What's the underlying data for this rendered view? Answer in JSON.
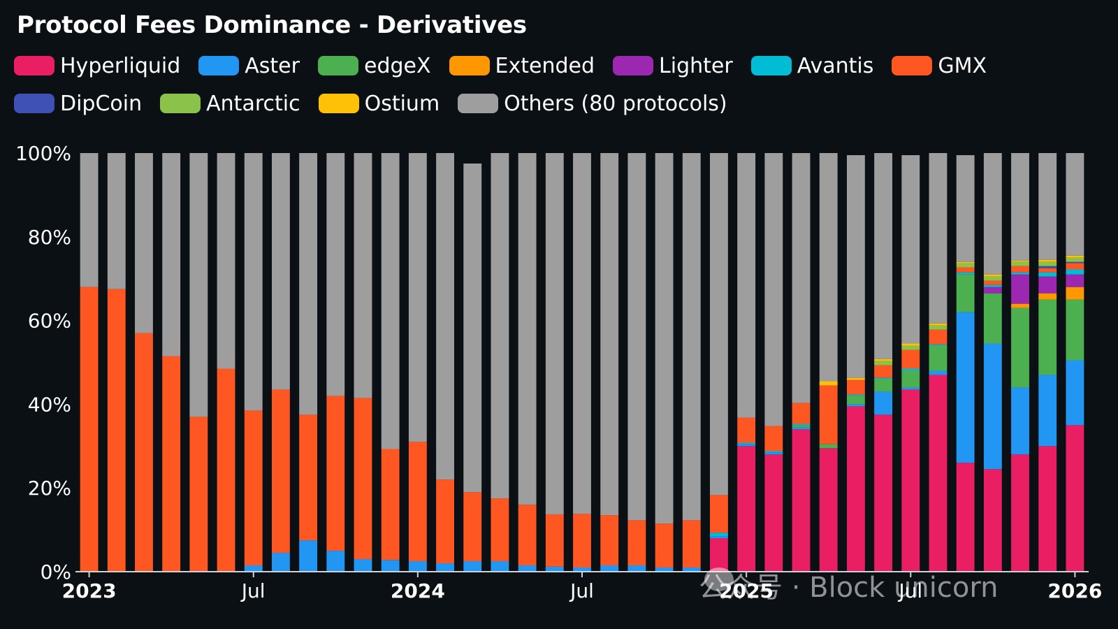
{
  "title": "Protocol Fees Dominance - Derivatives",
  "watermark": "公众号 · Block unicorn",
  "colors": {
    "Hyperliquid": "#e91e63",
    "Aster": "#2196f3",
    "edgeX": "#4caf50",
    "Extended": "#ff9800",
    "Lighter": "#9c27b0",
    "Avantis": "#00bcd4",
    "GMX": "#ff5722",
    "DipCoin": "#3f51b5",
    "Antarctic": "#8bc34a",
    "Ostium": "#ffc107",
    "Others (80 protocols)": "#9e9e9e"
  },
  "legend": [
    "Hyperliquid",
    "Aster",
    "edgeX",
    "Extended",
    "Lighter",
    "Avantis",
    "GMX",
    "DipCoin",
    "Antarctic",
    "Ostium",
    "Others (80 protocols)"
  ],
  "chart_data": {
    "type": "bar",
    "stacked": true,
    "title": "Protocol Fees Dominance - Derivatives",
    "ylim": [
      0,
      100
    ],
    "yticks": [
      "0%",
      "20%",
      "40%",
      "60%",
      "80%",
      "100%"
    ],
    "xtick_labels": [
      {
        "label": "2023",
        "index": 0,
        "bold": true
      },
      {
        "label": "Jul",
        "index": 6,
        "bold": false
      },
      {
        "label": "2024",
        "index": 12,
        "bold": true
      },
      {
        "label": "Jul",
        "index": 18,
        "bold": false
      },
      {
        "label": "2025",
        "index": 24,
        "bold": true
      },
      {
        "label": "Jul",
        "index": 30,
        "bold": false
      },
      {
        "label": "2026",
        "index": 36,
        "bold": true
      }
    ],
    "categories": [
      "2023-01",
      "2023-02",
      "2023-03",
      "2023-04",
      "2023-05",
      "2023-06",
      "2023-07",
      "2023-08",
      "2023-09",
      "2023-10",
      "2023-11",
      "2023-12",
      "2024-01",
      "2024-02",
      "2024-03",
      "2024-04",
      "2024-05",
      "2024-06",
      "2024-07",
      "2024-08",
      "2024-09",
      "2024-10",
      "2024-11",
      "2024-12",
      "2025-01",
      "2025-02",
      "2025-03",
      "2025-04",
      "2025-05",
      "2025-06",
      "2025-07",
      "2025-08",
      "2025-09",
      "2025-10",
      "2025-11",
      "2025-12",
      "2026-01"
    ],
    "series": [
      {
        "name": "Hyperliquid",
        "values": [
          0,
          0,
          0,
          0,
          0,
          0,
          0,
          0,
          0,
          0,
          0,
          0,
          0,
          0,
          0,
          0,
          0,
          0,
          0,
          0,
          0,
          0,
          0,
          8,
          30,
          28,
          34,
          29.5,
          39.5,
          37.5,
          43.5,
          47,
          26,
          24.5,
          28,
          30,
          35
        ]
      },
      {
        "name": "Aster",
        "values": [
          0,
          0,
          0,
          0,
          0,
          0,
          1.5,
          4.5,
          7.5,
          5,
          3,
          2.8,
          2.5,
          2,
          2.5,
          2.5,
          1.5,
          1.2,
          1,
          1.5,
          1.5,
          1,
          1,
          0.5,
          0.5,
          0.5,
          0.5,
          0,
          0.5,
          5.5,
          0.5,
          1,
          36,
          30,
          16,
          17,
          15.5
        ]
      },
      {
        "name": "edgeX",
        "values": [
          0,
          0,
          0,
          0,
          0,
          0,
          0,
          0,
          0,
          0,
          0,
          0,
          0,
          0,
          0,
          0,
          0,
          0,
          0,
          0,
          0,
          0,
          0,
          0,
          0,
          0,
          0.5,
          1,
          2,
          3,
          4,
          6,
          9,
          12,
          19,
          18,
          14.5
        ]
      },
      {
        "name": "Extended",
        "values": [
          0,
          0,
          0,
          0,
          0,
          0,
          0,
          0,
          0,
          0,
          0,
          0,
          0,
          0,
          0,
          0,
          0,
          0,
          0,
          0,
          0,
          0,
          0,
          0,
          0,
          0,
          0,
          0,
          0,
          0,
          0,
          0,
          0,
          0,
          1,
          1.5,
          3
        ]
      },
      {
        "name": "Lighter",
        "values": [
          0,
          0,
          0,
          0,
          0,
          0,
          0,
          0,
          0,
          0,
          0,
          0,
          0,
          0,
          0,
          0,
          0,
          0,
          0,
          0,
          0,
          0,
          0,
          0,
          0,
          0,
          0,
          0,
          0,
          0,
          0,
          0,
          0,
          1.5,
          7,
          4,
          3
        ]
      },
      {
        "name": "Avantis",
        "values": [
          0,
          0,
          0,
          0,
          0,
          0,
          0,
          0,
          0,
          0,
          0,
          0,
          0,
          0,
          0,
          0,
          0,
          0,
          0,
          0,
          0,
          0,
          0,
          0.8,
          0.3,
          0.3,
          0.3,
          0,
          0.3,
          0.3,
          0.5,
          0.3,
          0.5,
          0.5,
          0.5,
          1,
          1.2
        ]
      },
      {
        "name": "GMX",
        "values": [
          68,
          67.5,
          57,
          51.5,
          37,
          48.5,
          37,
          39,
          30,
          37,
          38.5,
          26.5,
          28.5,
          20,
          16.5,
          15,
          14.5,
          12.5,
          12.8,
          12,
          10.8,
          10.5,
          11.3,
          9,
          6,
          6,
          5,
          14,
          3.5,
          3,
          4.5,
          3.5,
          1.2,
          1,
          1.5,
          1,
          1.5
        ]
      },
      {
        "name": "DipCoin",
        "values": [
          0,
          0,
          0,
          0,
          0,
          0,
          0,
          0,
          0,
          0,
          0,
          0,
          0,
          0,
          0,
          0,
          0,
          0,
          0,
          0,
          0,
          0,
          0,
          0,
          0,
          0,
          0,
          0,
          0,
          0,
          0,
          0,
          0,
          0,
          0,
          0.5,
          0.3
        ]
      },
      {
        "name": "Antarctic",
        "values": [
          0,
          0,
          0,
          0,
          0,
          0,
          0,
          0,
          0,
          0,
          0,
          0,
          0,
          0,
          0,
          0,
          0,
          0,
          0,
          0,
          0,
          0,
          0,
          0,
          0,
          0,
          0,
          0,
          0,
          1,
          1,
          1,
          1,
          1,
          1,
          1,
          1
        ]
      },
      {
        "name": "Ostium",
        "values": [
          0,
          0,
          0,
          0,
          0,
          0,
          0,
          0,
          0,
          0,
          0,
          0,
          0,
          0,
          0,
          0,
          0,
          0,
          0,
          0,
          0,
          0,
          0,
          0,
          0,
          0,
          0,
          1,
          0.5,
          0.5,
          0.5,
          0.5,
          0.3,
          0.5,
          0.3,
          0.5,
          0.5
        ]
      },
      {
        "name": "Others (80 protocols)",
        "values": [
          32,
          32.5,
          43,
          48.5,
          63,
          51.5,
          61.5,
          56.5,
          62.5,
          58,
          58.5,
          70.7,
          69,
          78,
          78.5,
          82.5,
          84,
          86.3,
          86.2,
          86.5,
          87.7,
          88.5,
          87.7,
          81.7,
          63.2,
          65.2,
          59.7,
          54.5,
          53.2,
          49.2,
          45,
          40.7,
          25.5,
          29,
          25.7,
          25.5,
          24.5
        ]
      }
    ]
  }
}
